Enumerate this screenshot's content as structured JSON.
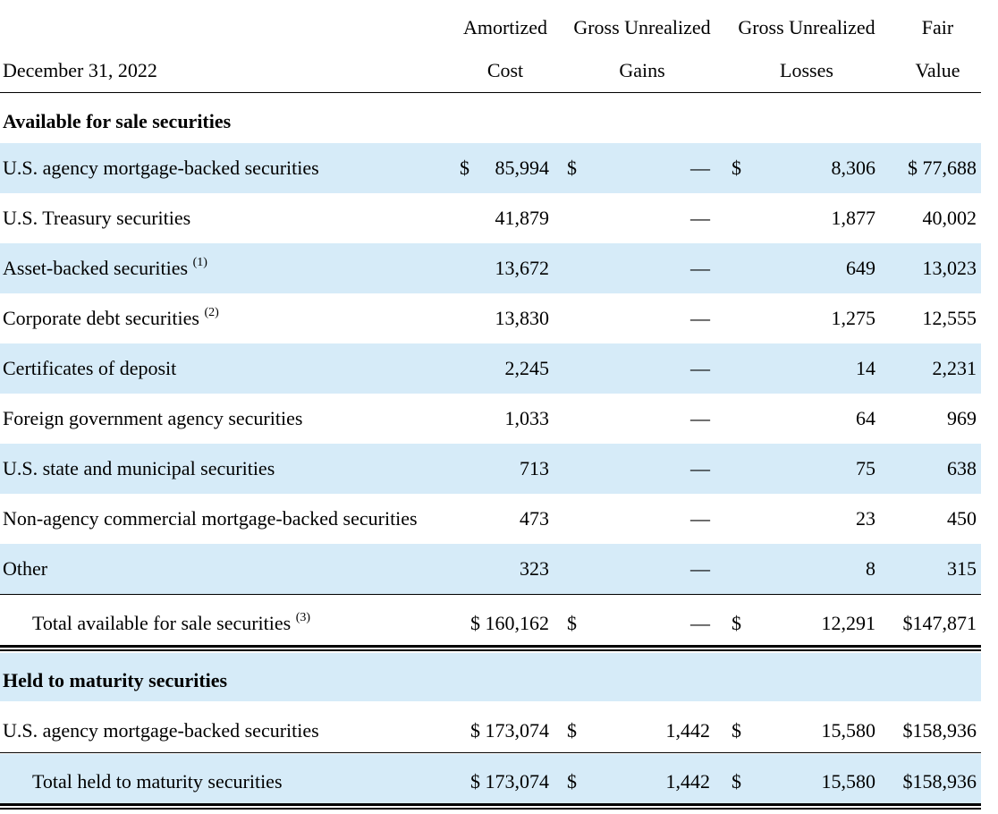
{
  "header": {
    "date_label": "December 31, 2022",
    "columns": [
      {
        "line1": "Amortized",
        "line2": "Cost"
      },
      {
        "line1": "Gross Unrealized",
        "line2": "Gains"
      },
      {
        "line1": "Gross Unrealized",
        "line2": "Losses"
      },
      {
        "line1": "Fair",
        "line2": "Value"
      }
    ]
  },
  "currency_symbol": "$",
  "afs": {
    "title": "Available for sale securities",
    "rows": [
      {
        "label": "U.S. agency mortgage-backed securities",
        "note": "",
        "cost": "85,994",
        "gains": "—",
        "losses": "8,306",
        "fair": "$ 77,688"
      },
      {
        "label": "U.S. Treasury securities",
        "note": "",
        "cost": "41,879",
        "gains": "—",
        "losses": "1,877",
        "fair": "40,002"
      },
      {
        "label": "Asset-backed securities",
        "note": "(1)",
        "cost": "13,672",
        "gains": "—",
        "losses": "649",
        "fair": "13,023"
      },
      {
        "label": "Corporate debt securities",
        "note": "(2)",
        "cost": "13,830",
        "gains": "—",
        "losses": "1,275",
        "fair": "12,555"
      },
      {
        "label": "Certificates of deposit",
        "note": "",
        "cost": "2,245",
        "gains": "—",
        "losses": "14",
        "fair": "2,231"
      },
      {
        "label": "Foreign government agency securities",
        "note": "",
        "cost": "1,033",
        "gains": "—",
        "losses": "64",
        "fair": "969"
      },
      {
        "label": "U.S. state and municipal securities",
        "note": "",
        "cost": "713",
        "gains": "—",
        "losses": "75",
        "fair": "638"
      },
      {
        "label": "Non-agency commercial mortgage-backed securities",
        "note": "",
        "cost": "473",
        "gains": "—",
        "losses": "23",
        "fair": "450"
      },
      {
        "label": "Other",
        "note": "",
        "cost": "323",
        "gains": "—",
        "losses": "8",
        "fair": "315"
      }
    ],
    "total": {
      "label": "Total available for sale securities",
      "note": "(3)",
      "cost": "$ 160,162",
      "gains": "—",
      "losses": "12,291",
      "fair": "$147,871"
    }
  },
  "htm": {
    "title": "Held to maturity securities",
    "rows": [
      {
        "label": "U.S. agency mortgage-backed securities",
        "cost": "$ 173,074",
        "gains": "1,442",
        "losses": "15,580",
        "fair": "$158,936"
      }
    ],
    "total": {
      "label": "Total held to maturity securities",
      "cost": "$ 173,074",
      "gains": "1,442",
      "losses": "15,580",
      "fair": "$158,936"
    }
  }
}
